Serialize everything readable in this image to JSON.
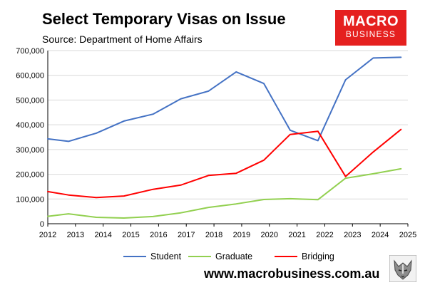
{
  "header": {
    "title": "Select Temporary Visas on Issue",
    "subtitle": "Source: Department of Home Affairs"
  },
  "logo": {
    "line1": "MACRO",
    "line2": "BUSINESS",
    "color": "#e5201f"
  },
  "footer": {
    "website": "www.macrobusiness.com.au"
  },
  "chart_data": {
    "type": "line",
    "title": "Select Temporary Visas on Issue",
    "subtitle": "Source: Department of Home Affairs",
    "xlabel": "",
    "ylabel": "",
    "xlim": [
      2012,
      2025
    ],
    "ylim": [
      0,
      700000
    ],
    "x_ticks": [
      "2012",
      "2013",
      "2014",
      "2015",
      "2016",
      "2017",
      "2018",
      "2019",
      "2020",
      "2021",
      "2022",
      "2023",
      "2024",
      "2025"
    ],
    "y_ticks": [
      "0",
      "100,000",
      "200,000",
      "300,000",
      "400,000",
      "500,000",
      "600,000",
      "700,000"
    ],
    "y_tick_values": [
      0,
      100000,
      200000,
      300000,
      400000,
      500000,
      600000,
      700000
    ],
    "grid": "horizontal",
    "legend_position": "bottom",
    "series": [
      {
        "name": "Student",
        "color": "#4472c4",
        "x": [
          2012.0,
          2012.75,
          2013.75,
          2014.75,
          2015.8,
          2016.8,
          2017.8,
          2018.8,
          2019.8,
          2020.75,
          2021.75,
          2022.75,
          2023.75,
          2024.75
        ],
        "y": [
          343000,
          333000,
          366000,
          415000,
          443000,
          505000,
          536000,
          614000,
          567000,
          378000,
          336000,
          582000,
          670000,
          673000
        ]
      },
      {
        "name": "Graduate",
        "color": "#92d050",
        "x": [
          2012.0,
          2012.75,
          2013.75,
          2014.75,
          2015.8,
          2016.8,
          2017.8,
          2018.8,
          2019.8,
          2020.75,
          2021.75,
          2022.75,
          2023.75,
          2024.75
        ],
        "y": [
          30000,
          40000,
          26000,
          23000,
          29000,
          44000,
          66000,
          80000,
          98000,
          101000,
          97000,
          184000,
          202000,
          222000
        ]
      },
      {
        "name": "Bridging",
        "color": "#ff0000",
        "x": [
          2012.0,
          2012.75,
          2013.75,
          2014.75,
          2015.8,
          2016.8,
          2017.8,
          2018.8,
          2019.8,
          2020.75,
          2021.75,
          2022.75,
          2023.75,
          2024.75
        ],
        "y": [
          130000,
          116000,
          106000,
          112000,
          139000,
          156000,
          195000,
          204000,
          257000,
          361000,
          374000,
          191000,
          290000,
          381000
        ]
      }
    ]
  }
}
